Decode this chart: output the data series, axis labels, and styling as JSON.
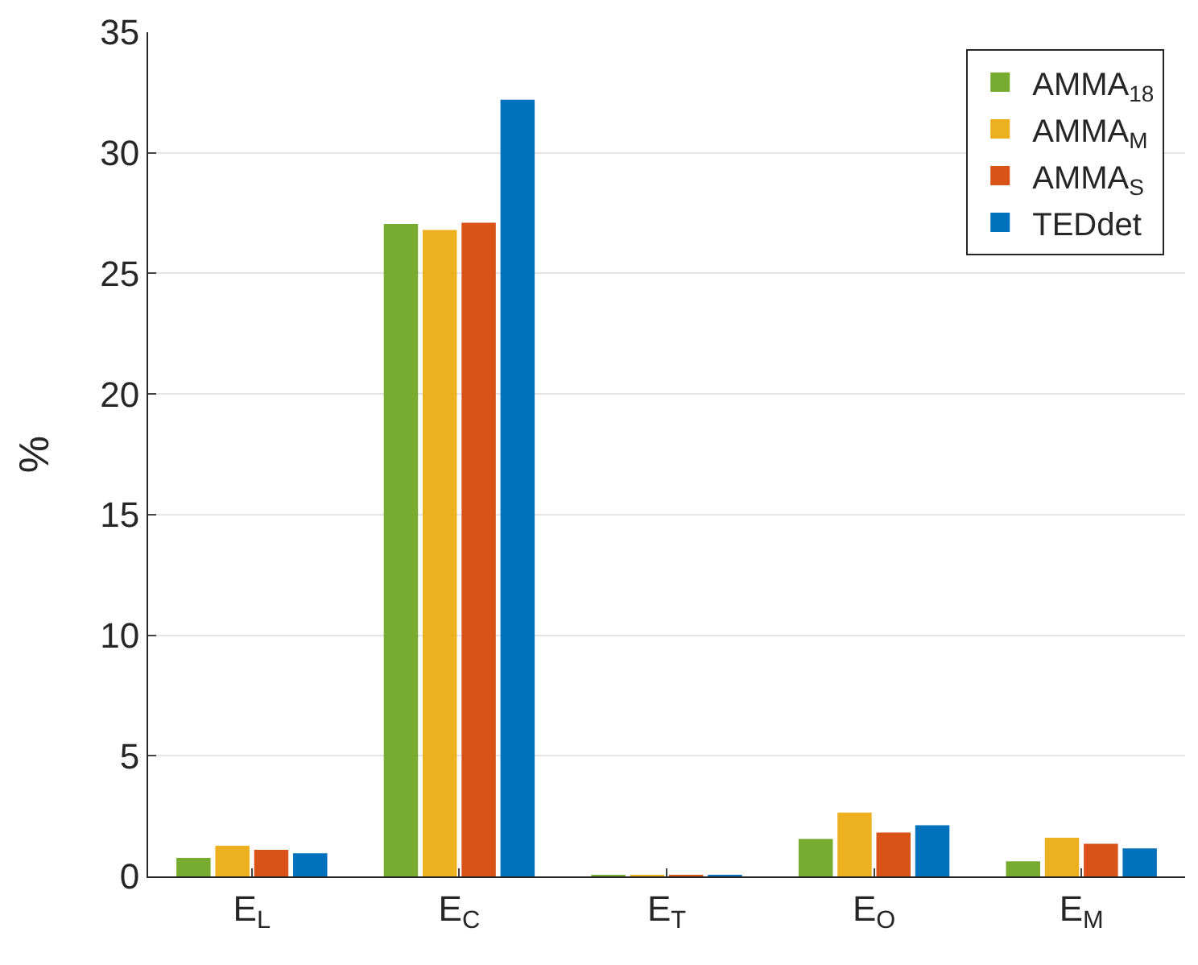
{
  "chart_data": {
    "type": "bar",
    "ylabel": "%",
    "categories": [
      "E$_{L}$",
      "E$_{C}$",
      "E$_{T}$",
      "E$_{O}$",
      "E$_{M}$"
    ],
    "series": [
      {
        "name": "AMMA$_{18}$",
        "color": "#77ac30",
        "values": [
          0.77,
          27.05,
          0.05,
          1.55,
          0.63
        ]
      },
      {
        "name": "AMMA$_{M}$",
        "color": "#edb120",
        "values": [
          1.27,
          26.8,
          0.05,
          2.65,
          1.6
        ]
      },
      {
        "name": "AMMA$_{S}$",
        "color": "#d95319",
        "values": [
          1.1,
          27.1,
          0.05,
          1.82,
          1.35
        ]
      },
      {
        "name": "TEDdet",
        "color": "#0072bd",
        "values": [
          0.96,
          32.2,
          0.05,
          2.12,
          1.16
        ]
      }
    ],
    "ylim": [
      0,
      35
    ],
    "yticks": [
      0,
      5,
      10,
      15,
      20,
      25,
      30,
      35
    ],
    "grid": "y",
    "legend": "top right"
  }
}
